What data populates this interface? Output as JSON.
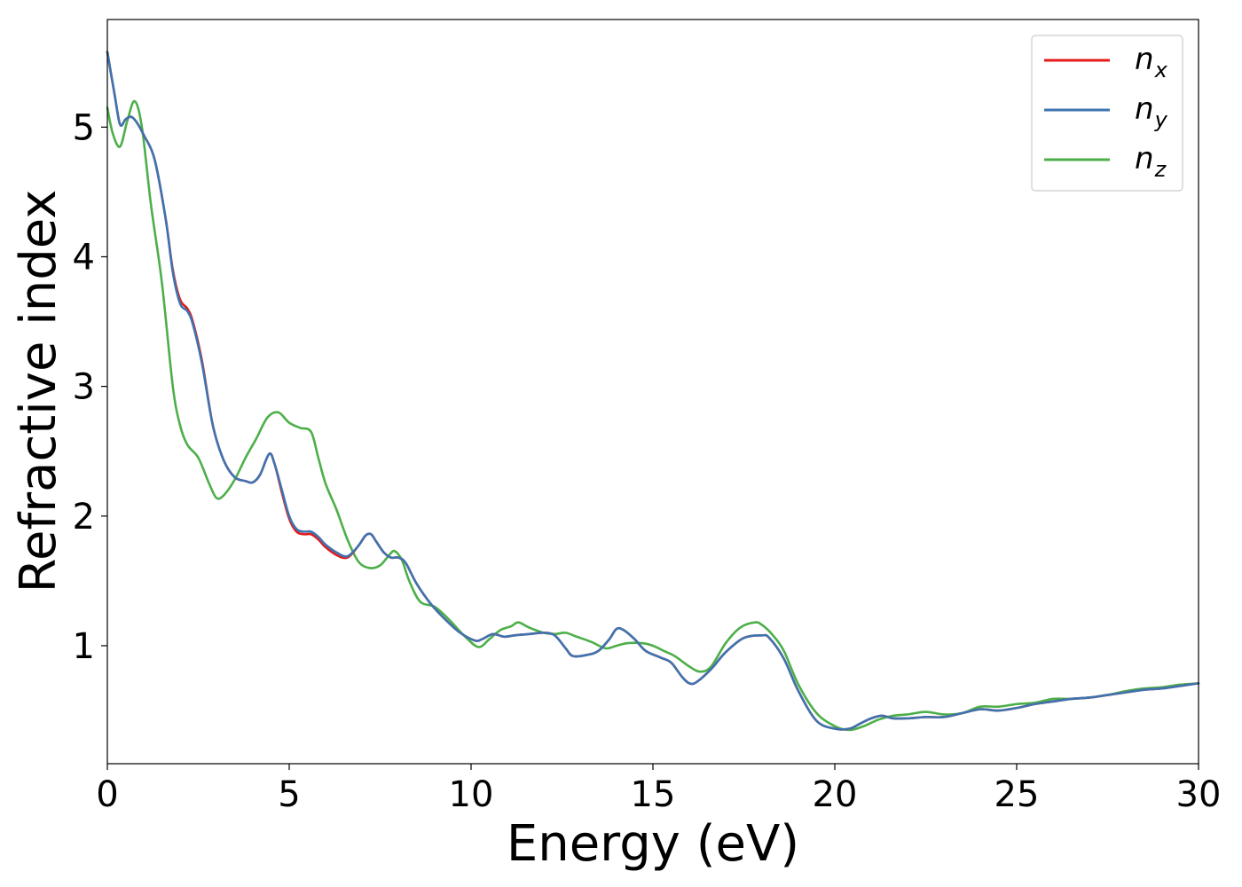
{
  "chart_data": {
    "type": "line",
    "title": "",
    "xlabel": "Energy (eV)",
    "ylabel": "Refractive index",
    "xlim": [
      0,
      30
    ],
    "ylim": [
      0.09,
      5.83
    ],
    "xticks": [
      0,
      5,
      10,
      15,
      20,
      25,
      30
    ],
    "xtick_labels": [
      "0",
      "5",
      "10",
      "15",
      "20",
      "25",
      "30"
    ],
    "yticks": [
      1,
      2,
      3,
      4,
      5
    ],
    "ytick_labels": [
      "1",
      "2",
      "3",
      "4",
      "5"
    ],
    "grid": false,
    "legend_position": "top-right",
    "series": [
      {
        "name": "n_x",
        "label_base": "n",
        "label_sub": "x",
        "color": "#e41a1c",
        "x": [
          0,
          0.2,
          0.35,
          0.5,
          0.65,
          0.8,
          1.0,
          1.3,
          1.6,
          1.8,
          2.0,
          2.2,
          2.35,
          2.6,
          2.9,
          3.2,
          3.5,
          3.8,
          4.0,
          4.2,
          4.45,
          4.6,
          4.8,
          5.0,
          5.2,
          5.4,
          5.6,
          5.8,
          6.0,
          6.3,
          6.6,
          6.9,
          7.1,
          7.25,
          7.4,
          7.6,
          7.8,
          8.0,
          8.2,
          8.5,
          8.9,
          9.3,
          9.7,
          10.1,
          10.3,
          10.6,
          10.9,
          11.2,
          11.6,
          12.0,
          12.3,
          12.6,
          12.8,
          13.2,
          13.5,
          13.8,
          14.0,
          14.2,
          14.5,
          14.8,
          15.2,
          15.5,
          15.8,
          16.0,
          16.2,
          16.6,
          17.0,
          17.5,
          18.0,
          18.2,
          18.6,
          19.0,
          19.5,
          20.0,
          20.4,
          20.7,
          21.0,
          21.3,
          21.6,
          22.0,
          22.5,
          23.0,
          23.5,
          24.0,
          24.5,
          25.0,
          25.5,
          26.0,
          26.5,
          27.0,
          27.5,
          28.0,
          28.5,
          29.0,
          29.5,
          30.0
        ],
        "y": [
          5.58,
          5.25,
          5.02,
          5.06,
          5.08,
          5.04,
          4.94,
          4.75,
          4.3,
          3.9,
          3.67,
          3.6,
          3.5,
          3.2,
          2.7,
          2.43,
          2.3,
          2.27,
          2.26,
          2.32,
          2.48,
          2.4,
          2.18,
          1.98,
          1.88,
          1.86,
          1.86,
          1.82,
          1.76,
          1.7,
          1.68,
          1.77,
          1.85,
          1.86,
          1.8,
          1.72,
          1.68,
          1.68,
          1.64,
          1.48,
          1.32,
          1.2,
          1.1,
          1.04,
          1.05,
          1.09,
          1.07,
          1.08,
          1.09,
          1.1,
          1.08,
          0.98,
          0.92,
          0.93,
          0.96,
          1.05,
          1.13,
          1.12,
          1.05,
          0.96,
          0.91,
          0.87,
          0.76,
          0.71,
          0.72,
          0.82,
          0.95,
          1.06,
          1.08,
          1.06,
          0.9,
          0.65,
          0.42,
          0.36,
          0.36,
          0.4,
          0.44,
          0.46,
          0.44,
          0.44,
          0.45,
          0.45,
          0.48,
          0.51,
          0.5,
          0.52,
          0.55,
          0.57,
          0.59,
          0.6,
          0.62,
          0.64,
          0.66,
          0.67,
          0.69,
          0.71
        ]
      },
      {
        "name": "n_y",
        "label_base": "n",
        "label_sub": "y",
        "color": "#3d74b0",
        "x": [
          0,
          0.2,
          0.35,
          0.5,
          0.65,
          0.8,
          1.0,
          1.3,
          1.6,
          1.8,
          2.0,
          2.2,
          2.35,
          2.6,
          2.9,
          3.2,
          3.5,
          3.8,
          4.0,
          4.2,
          4.45,
          4.6,
          4.8,
          5.0,
          5.2,
          5.4,
          5.6,
          5.8,
          6.0,
          6.3,
          6.6,
          6.9,
          7.1,
          7.25,
          7.4,
          7.6,
          7.8,
          8.0,
          8.2,
          8.5,
          8.9,
          9.3,
          9.7,
          10.1,
          10.3,
          10.6,
          10.9,
          11.2,
          11.6,
          12.0,
          12.3,
          12.6,
          12.8,
          13.2,
          13.5,
          13.8,
          14.0,
          14.2,
          14.5,
          14.8,
          15.2,
          15.5,
          15.8,
          16.0,
          16.2,
          16.6,
          17.0,
          17.5,
          18.0,
          18.2,
          18.6,
          19.0,
          19.5,
          20.0,
          20.4,
          20.7,
          21.0,
          21.3,
          21.6,
          22.0,
          22.5,
          23.0,
          23.5,
          24.0,
          24.5,
          25.0,
          25.5,
          26.0,
          26.5,
          27.0,
          27.5,
          28.0,
          28.5,
          29.0,
          29.5,
          30.0
        ],
        "y": [
          5.58,
          5.25,
          5.02,
          5.06,
          5.08,
          5.04,
          4.94,
          4.75,
          4.3,
          3.88,
          3.64,
          3.58,
          3.48,
          3.18,
          2.7,
          2.43,
          2.3,
          2.27,
          2.26,
          2.32,
          2.48,
          2.4,
          2.2,
          2.0,
          1.9,
          1.88,
          1.88,
          1.84,
          1.78,
          1.72,
          1.69,
          1.77,
          1.85,
          1.86,
          1.8,
          1.72,
          1.68,
          1.68,
          1.64,
          1.48,
          1.32,
          1.2,
          1.1,
          1.04,
          1.05,
          1.09,
          1.07,
          1.08,
          1.09,
          1.1,
          1.08,
          0.98,
          0.92,
          0.93,
          0.96,
          1.05,
          1.13,
          1.12,
          1.05,
          0.96,
          0.91,
          0.87,
          0.76,
          0.71,
          0.72,
          0.82,
          0.95,
          1.06,
          1.08,
          1.06,
          0.9,
          0.65,
          0.42,
          0.36,
          0.36,
          0.4,
          0.44,
          0.46,
          0.44,
          0.44,
          0.45,
          0.45,
          0.48,
          0.51,
          0.5,
          0.52,
          0.55,
          0.57,
          0.59,
          0.6,
          0.62,
          0.64,
          0.66,
          0.67,
          0.69,
          0.71
        ]
      },
      {
        "name": "n_z",
        "label_base": "n",
        "label_sub": "z",
        "color": "#4daf4a",
        "x": [
          0,
          0.15,
          0.35,
          0.55,
          0.75,
          0.95,
          1.2,
          1.5,
          1.8,
          2.0,
          2.2,
          2.5,
          2.8,
          3.0,
          3.2,
          3.5,
          3.8,
          4.1,
          4.4,
          4.7,
          5.0,
          5.3,
          5.6,
          5.8,
          6.0,
          6.3,
          6.6,
          6.9,
          7.2,
          7.5,
          7.75,
          7.9,
          8.1,
          8.3,
          8.6,
          9.0,
          9.4,
          9.8,
          10.2,
          10.5,
          10.8,
          11.1,
          11.3,
          11.6,
          12.0,
          12.3,
          12.6,
          12.9,
          13.3,
          13.7,
          14.0,
          14.3,
          14.7,
          15.0,
          15.3,
          15.6,
          16.0,
          16.3,
          16.6,
          17.0,
          17.4,
          17.8,
          18.0,
          18.3,
          18.6,
          19.0,
          19.5,
          20.0,
          20.4,
          20.8,
          21.2,
          21.6,
          22.0,
          22.5,
          23.0,
          23.5,
          24.0,
          24.5,
          25.0,
          25.5,
          26.0,
          26.5,
          27.0,
          27.5,
          28.0,
          28.5,
          29.0,
          29.5,
          30.0
        ],
        "y": [
          5.15,
          4.95,
          4.85,
          5.05,
          5.2,
          5.0,
          4.4,
          3.8,
          3.0,
          2.7,
          2.55,
          2.45,
          2.25,
          2.14,
          2.16,
          2.28,
          2.45,
          2.6,
          2.76,
          2.8,
          2.72,
          2.68,
          2.65,
          2.45,
          2.25,
          2.05,
          1.82,
          1.65,
          1.6,
          1.62,
          1.7,
          1.73,
          1.66,
          1.5,
          1.34,
          1.3,
          1.2,
          1.08,
          0.99,
          1.05,
          1.12,
          1.15,
          1.18,
          1.14,
          1.1,
          1.09,
          1.1,
          1.07,
          1.03,
          0.98,
          1.0,
          1.02,
          1.02,
          1.0,
          0.96,
          0.92,
          0.84,
          0.8,
          0.84,
          1.02,
          1.14,
          1.18,
          1.16,
          1.08,
          0.96,
          0.7,
          0.48,
          0.38,
          0.35,
          0.38,
          0.43,
          0.46,
          0.47,
          0.49,
          0.47,
          0.48,
          0.53,
          0.53,
          0.55,
          0.56,
          0.59,
          0.59,
          0.6,
          0.62,
          0.65,
          0.67,
          0.68,
          0.7,
          0.71
        ]
      }
    ]
  }
}
